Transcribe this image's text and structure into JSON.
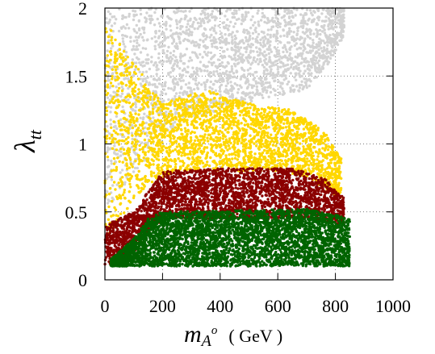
{
  "chart_data": {
    "type": "scatter",
    "title": "",
    "xlabel": {
      "symbol": "m",
      "subscript": "A",
      "superscript": "o",
      "unit": "( GeV )"
    },
    "ylabel": {
      "symbol": "λ",
      "subscript": "tt"
    },
    "xlim": [
      0,
      1000
    ],
    "ylim": [
      0,
      2
    ],
    "x_ticks": [
      0,
      200,
      400,
      600,
      800,
      1000
    ],
    "y_ticks": [
      0,
      0.5,
      1,
      1.5,
      2
    ],
    "x_tick_labels": [
      "0",
      "200",
      "400",
      "600",
      "800",
      "1000"
    ],
    "y_tick_labels": [
      "0",
      "0.5",
      "1",
      "1.5",
      "2"
    ],
    "grid": "dotted",
    "legend": "none",
    "series": [
      {
        "color": "#d3d3d3",
        "region": {
          "x_range": [
            0,
            830
          ],
          "y_min_by_x": [
            [
              0,
              0.5
            ],
            [
              150,
              0.9
            ],
            [
              250,
              1.15
            ],
            [
              400,
              1.25
            ],
            [
              600,
              1.35
            ],
            [
              700,
              1.4
            ],
            [
              780,
              1.6
            ],
            [
              830,
              1.8
            ]
          ],
          "y_max": 2.0
        },
        "approx_points": 2200
      },
      {
        "color": "#ffd700",
        "region": {
          "x_range": [
            0,
            820
          ],
          "y_min_by_x": [
            [
              0,
              0.3
            ],
            [
              150,
              0.7
            ],
            [
              250,
              0.8
            ],
            [
              400,
              0.8
            ],
            [
              600,
              0.8
            ],
            [
              700,
              0.75
            ],
            [
              820,
              0.6
            ]
          ],
          "y_max_by_x": [
            [
              0,
              1.9
            ],
            [
              100,
              1.6
            ],
            [
              200,
              1.3
            ],
            [
              350,
              1.4
            ],
            [
              500,
              1.3
            ],
            [
              650,
              1.25
            ],
            [
              760,
              1.1
            ],
            [
              800,
              0.95
            ],
            [
              820,
              0.9
            ]
          ]
        },
        "approx_points": 2600
      },
      {
        "color": "#8b0000",
        "region": {
          "x_range": [
            0,
            830
          ],
          "y_min_by_x": [
            [
              0,
              0.1
            ],
            [
              100,
              0.2
            ],
            [
              200,
              0.45
            ],
            [
              400,
              0.45
            ],
            [
              700,
              0.45
            ],
            [
              830,
              0.4
            ]
          ],
          "y_max_by_x": [
            [
              0,
              0.4
            ],
            [
              100,
              0.5
            ],
            [
              150,
              0.65
            ],
            [
              200,
              0.8
            ],
            [
              400,
              0.82
            ],
            [
              650,
              0.82
            ],
            [
              760,
              0.75
            ],
            [
              830,
              0.6
            ]
          ]
        },
        "approx_points": 3000
      },
      {
        "color": "#006400",
        "region": {
          "x_range": [
            20,
            850
          ],
          "y_min": 0.1,
          "y_max_by_x": [
            [
              20,
              0.15
            ],
            [
              100,
              0.3
            ],
            [
              150,
              0.45
            ],
            [
              200,
              0.5
            ],
            [
              700,
              0.52
            ],
            [
              800,
              0.48
            ],
            [
              850,
              0.45
            ]
          ]
        },
        "approx_points": 4200
      }
    ]
  }
}
